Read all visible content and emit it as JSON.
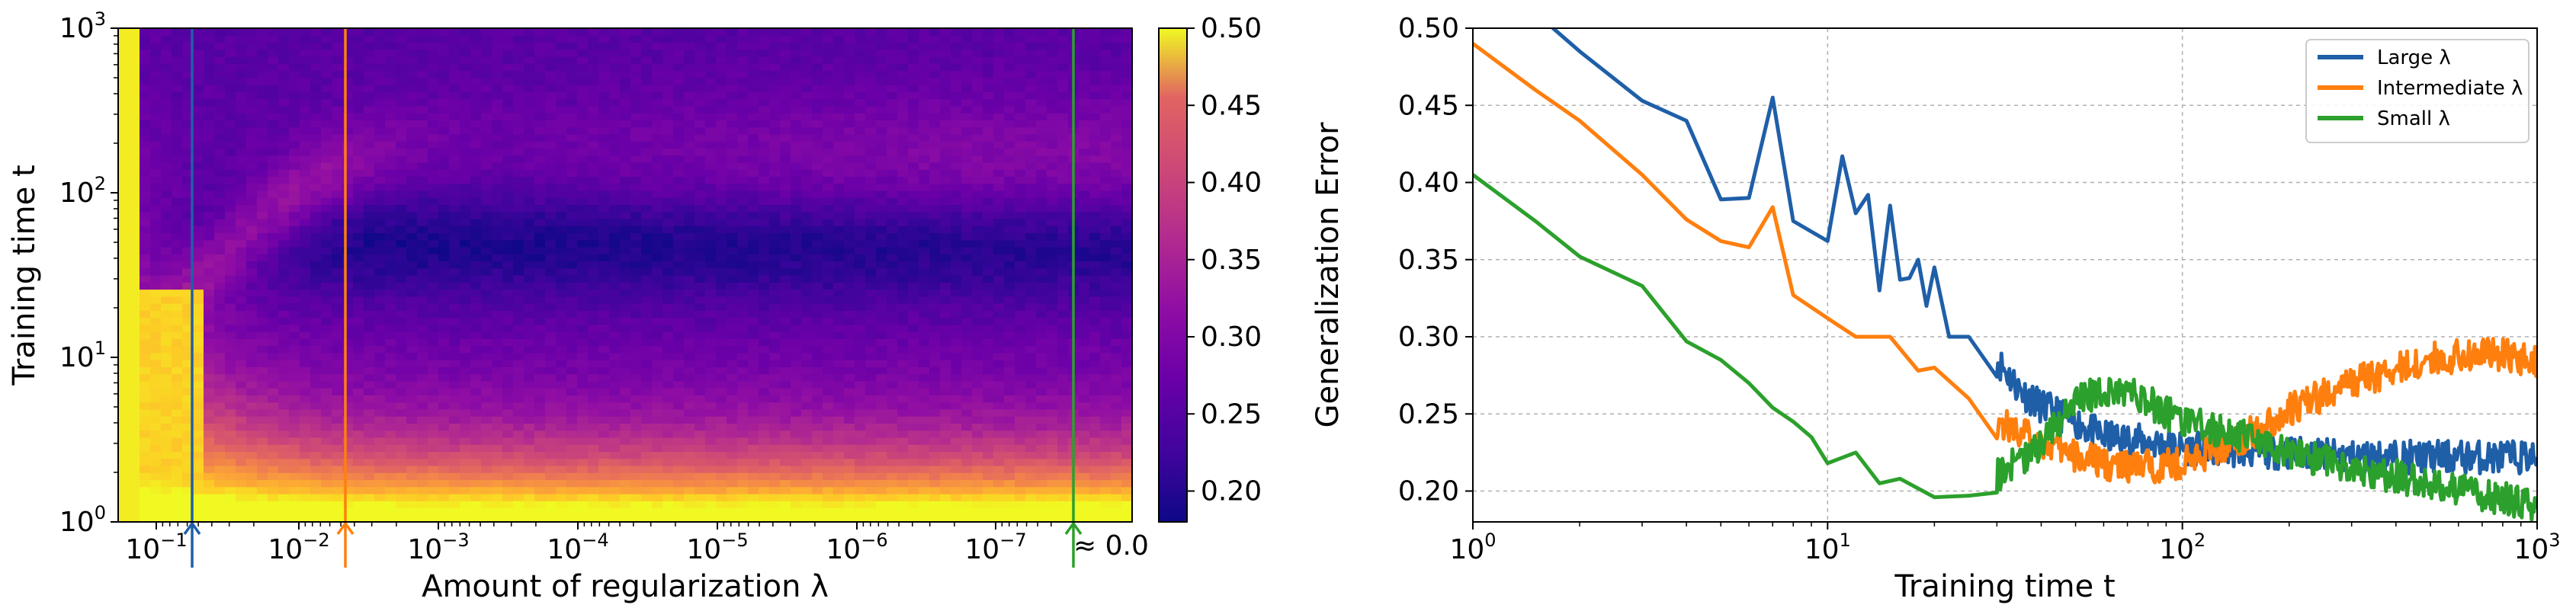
{
  "chart_data": [
    {
      "type": "heatmap",
      "xlabel": "Amount of regularization λ",
      "ylabel": "Training time t",
      "x_scale": "log-reversed",
      "y_scale": "log",
      "xlim": [
        0.2,
        0.0
      ],
      "ylim": [
        1,
        1000
      ],
      "x_tick_labels": [
        "10",
        "10",
        "10",
        "10",
        "10",
        "10",
        "10"
      ],
      "x_tick_exponents": [
        "−1",
        "−2",
        "−3",
        "−4",
        "−5",
        "−6",
        "−7"
      ],
      "x_zero_label": "≈ 0.0",
      "y_tick_labels": [
        "10",
        "10",
        "10",
        "10"
      ],
      "y_tick_exponents": [
        "0",
        "1",
        "2",
        "3"
      ],
      "colorbar": {
        "colormap": "plasma",
        "range": [
          0.18,
          0.5
        ],
        "tick_labels": [
          "0.50",
          "0.45",
          "0.40",
          "0.35",
          "0.30",
          "0.25",
          "0.20"
        ],
        "ticks": [
          0.5,
          0.45,
          0.4,
          0.35,
          0.3,
          0.25,
          0.2
        ]
      },
      "markers": [
        {
          "name": "Large λ",
          "lambda": 0.09,
          "color": "#1f5fa8"
        },
        {
          "name": "Intermediate λ",
          "lambda": 0.004,
          "color": "#ff7f0e"
        },
        {
          "name": "Small λ",
          "lambda": 0.0,
          "color": "#2ca02c"
        }
      ]
    },
    {
      "type": "line",
      "xlabel": "Training time t",
      "ylabel": "Generalization Error",
      "x_scale": "log",
      "xlim": [
        1,
        1000
      ],
      "ylim": [
        0.18,
        0.5
      ],
      "grid": true,
      "legend": "top-right",
      "x_tick_labels": [
        "10",
        "10",
        "10",
        "10"
      ],
      "x_tick_exponents": [
        "0",
        "1",
        "2",
        "3"
      ],
      "y_tick_labels": [
        "0.50",
        "0.45",
        "0.40",
        "0.35",
        "0.30",
        "0.25",
        "0.20"
      ],
      "y_ticks": [
        0.5,
        0.45,
        0.4,
        0.35,
        0.3,
        0.25,
        0.2
      ],
      "series": [
        {
          "name": "Large λ",
          "color": "#1f5fa8",
          "x": [
            1,
            1.5,
            2,
            3,
            4,
            5,
            6,
            7,
            8,
            10,
            11,
            12,
            13,
            14,
            15,
            16,
            17,
            18,
            19,
            20,
            22,
            25,
            30,
            35,
            40,
            50,
            60,
            80,
            100,
            150,
            200,
            300,
            500,
            700,
            1000
          ],
          "y": [
            0.53,
            0.51,
            0.485,
            0.453,
            0.44,
            0.389,
            0.39,
            0.455,
            0.375,
            0.362,
            0.417,
            0.38,
            0.392,
            0.33,
            0.385,
            0.337,
            0.338,
            0.35,
            0.32,
            0.345,
            0.3,
            0.3,
            0.285,
            0.265,
            0.255,
            0.245,
            0.235,
            0.232,
            0.228,
            0.226,
            0.225,
            0.222,
            0.222,
            0.222,
            0.222
          ]
        },
        {
          "name": "Intermediate λ",
          "color": "#ff7f0e",
          "x": [
            1,
            1.5,
            2,
            3,
            4,
            5,
            6,
            7,
            8,
            10,
            12,
            15,
            18,
            20,
            25,
            30,
            40,
            50,
            70,
            100,
            150,
            200,
            300,
            500,
            700,
            1000
          ],
          "y": [
            0.49,
            0.46,
            0.44,
            0.405,
            0.376,
            0.362,
            0.358,
            0.384,
            0.327,
            0.312,
            0.3,
            0.3,
            0.278,
            0.28,
            0.26,
            0.245,
            0.232,
            0.222,
            0.215,
            0.218,
            0.235,
            0.252,
            0.27,
            0.285,
            0.29,
            0.285
          ]
        },
        {
          "name": "Small λ",
          "color": "#2ca02c",
          "x": [
            1,
            1.5,
            2,
            3,
            4,
            5,
            6,
            7,
            8,
            9,
            10,
            12,
            14,
            16,
            20,
            25,
            30,
            40,
            50,
            60,
            70,
            80,
            100,
            150,
            200,
            300,
            500,
            700,
            1000
          ],
          "y": [
            0.405,
            0.375,
            0.352,
            0.333,
            0.297,
            0.285,
            0.27,
            0.254,
            0.245,
            0.235,
            0.218,
            0.225,
            0.205,
            0.208,
            0.196,
            0.197,
            0.21,
            0.23,
            0.26,
            0.263,
            0.265,
            0.258,
            0.245,
            0.235,
            0.225,
            0.215,
            0.205,
            0.198,
            0.19
          ]
        }
      ]
    }
  ]
}
